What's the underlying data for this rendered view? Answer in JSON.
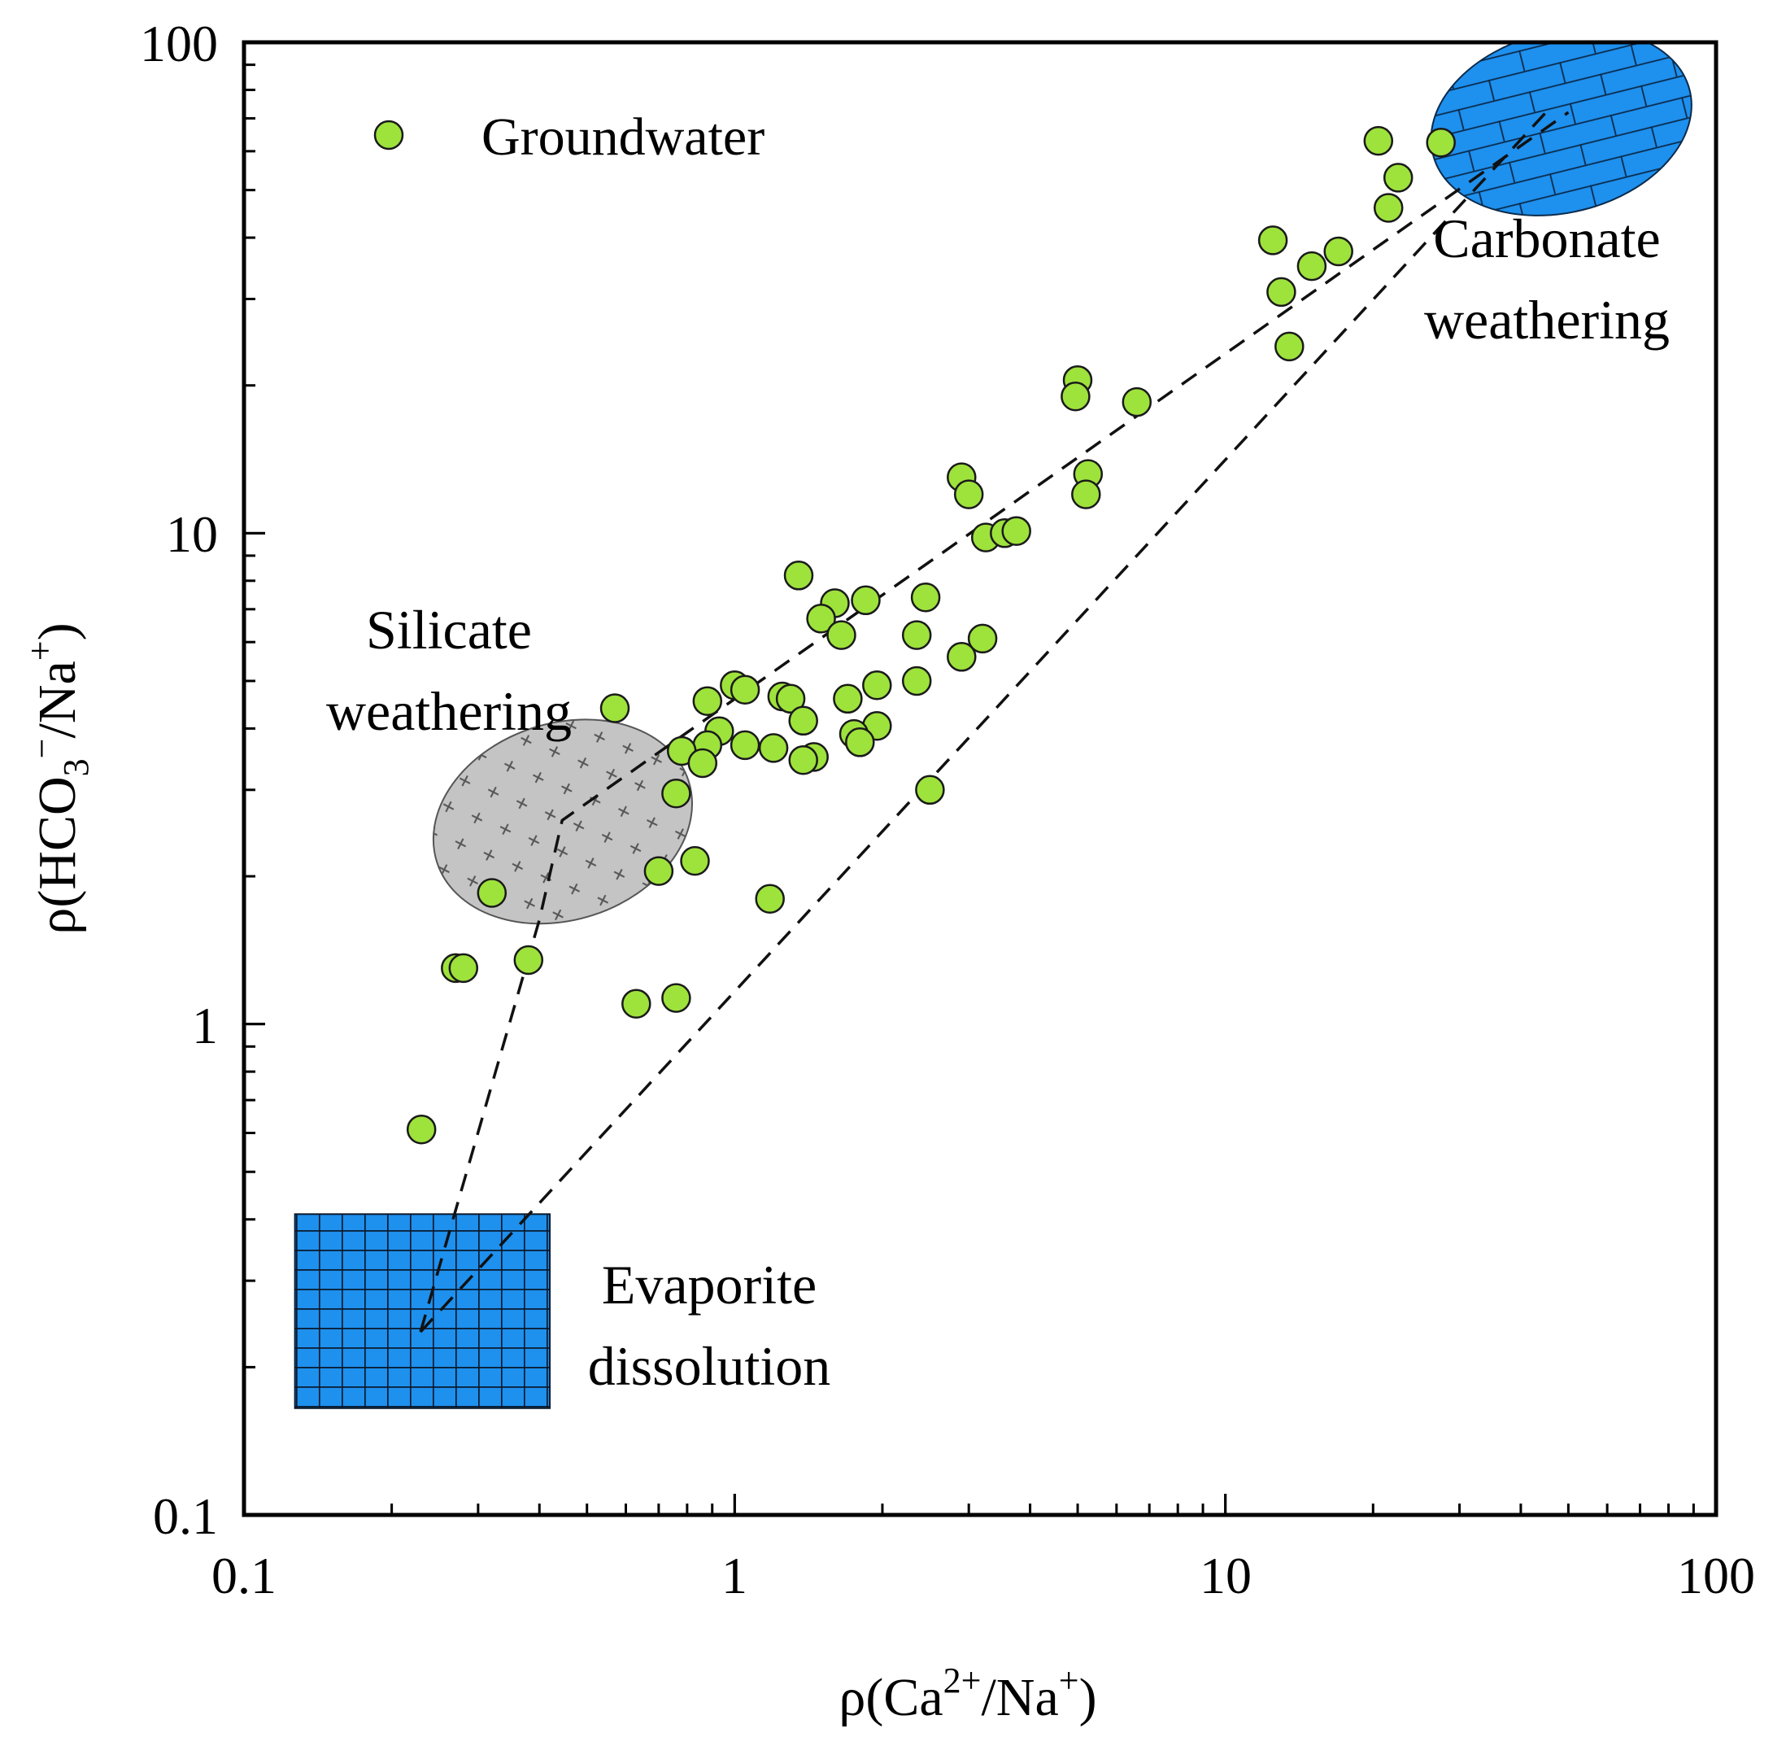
{
  "chart_data": {
    "type": "scatter",
    "x_scale": "log",
    "y_scale": "log",
    "xlim": [
      0.1,
      100
    ],
    "ylim": [
      0.1,
      100
    ],
    "x_ticks": [
      "0.1",
      "1",
      "10",
      "100"
    ],
    "y_ticks": [
      "0.1",
      "1",
      "10",
      "100"
    ],
    "xlabel": {
      "prefix": "ρ(Ca",
      "sup1": "2+",
      "mid": "/Na",
      "sup2": "+",
      "suffix": ")"
    },
    "ylabel": {
      "prefix": "ρ(HCO",
      "sub1": "3",
      "sup1": "−",
      "mid": "/Na",
      "sup2": "+",
      "suffix": ")"
    },
    "legend": {
      "label": "Groundwater",
      "position": "top-left"
    },
    "colors": {
      "point_fill": "#9ee23c",
      "point_stroke": "#1a1a1a",
      "region_blue": "#1e90ee",
      "region_gray": "#c4c4c4"
    },
    "regions": [
      {
        "name": "Carbonate weathering",
        "lines": [
          "Carbonate",
          "weathering"
        ],
        "shape": "ellipse",
        "x_range": [
          26,
          90
        ],
        "y_range": [
          45,
          105
        ]
      },
      {
        "name": "Silicate weathering",
        "lines": [
          "Silicate",
          "weathering"
        ],
        "shape": "ellipse",
        "x_range": [
          0.24,
          0.83
        ],
        "y_range": [
          1.63,
          4.1
        ]
      },
      {
        "name": "Evaporite dissolution",
        "lines": [
          "Evaporite",
          "dissolution"
        ],
        "shape": "rectangle",
        "x_range": [
          0.127,
          0.42
        ],
        "y_range": [
          0.165,
          0.41
        ]
      }
    ],
    "dashed_lines": [
      [
        [
          0.229,
          0.236
        ],
        [
          0.4,
          1.63
        ],
        [
          0.445,
          2.6
        ],
        [
          50,
          72
        ]
      ],
      [
        [
          0.229,
          0.236
        ],
        [
          45,
          72
        ]
      ]
    ],
    "series": [
      {
        "name": "Groundwater",
        "points": [
          [
            20.5,
            63
          ],
          [
            27.5,
            62.5
          ],
          [
            22.5,
            53
          ],
          [
            21.5,
            46
          ],
          [
            12.5,
            39.5
          ],
          [
            17,
            37.5
          ],
          [
            15,
            35
          ],
          [
            13,
            31
          ],
          [
            13.5,
            24
          ],
          [
            5,
            20.5
          ],
          [
            4.95,
            19
          ],
          [
            6.6,
            18.5
          ],
          [
            2.9,
            13
          ],
          [
            3,
            12
          ],
          [
            5.25,
            13.2
          ],
          [
            5.2,
            12
          ],
          [
            3.25,
            9.8
          ],
          [
            3.55,
            10
          ],
          [
            3.75,
            10.1
          ],
          [
            1.35,
            8.2
          ],
          [
            1.6,
            7.2
          ],
          [
            1.85,
            7.3
          ],
          [
            2.45,
            7.4
          ],
          [
            1.5,
            6.7
          ],
          [
            1.65,
            6.2
          ],
          [
            2.35,
            6.2
          ],
          [
            3.2,
            6.1
          ],
          [
            2.9,
            5.6
          ],
          [
            2.35,
            5
          ],
          [
            1.95,
            4.9
          ],
          [
            1.7,
            4.6
          ],
          [
            1,
            4.9
          ],
          [
            1.05,
            4.8
          ],
          [
            1.25,
            4.65
          ],
          [
            1.3,
            4.6
          ],
          [
            0.88,
            4.55
          ],
          [
            0.57,
            4.4
          ],
          [
            1.38,
            4.15
          ],
          [
            1.95,
            4.05
          ],
          [
            0.93,
            3.95
          ],
          [
            1.75,
            3.9
          ],
          [
            1.8,
            3.75
          ],
          [
            1.05,
            3.7
          ],
          [
            1.2,
            3.65
          ],
          [
            0.88,
            3.7
          ],
          [
            0.78,
            3.6
          ],
          [
            0.86,
            3.4
          ],
          [
            1.45,
            3.5
          ],
          [
            1.38,
            3.45
          ],
          [
            2.5,
            3
          ],
          [
            0.76,
            2.95
          ],
          [
            0.83,
            2.15
          ],
          [
            0.7,
            2.05
          ],
          [
            1.18,
            1.8
          ],
          [
            0.32,
            1.85
          ],
          [
            0.38,
            1.35
          ],
          [
            0.27,
            1.3
          ],
          [
            0.28,
            1.3
          ],
          [
            0.63,
            1.1
          ],
          [
            0.76,
            1.13
          ],
          [
            0.23,
            0.61
          ]
        ]
      }
    ]
  }
}
